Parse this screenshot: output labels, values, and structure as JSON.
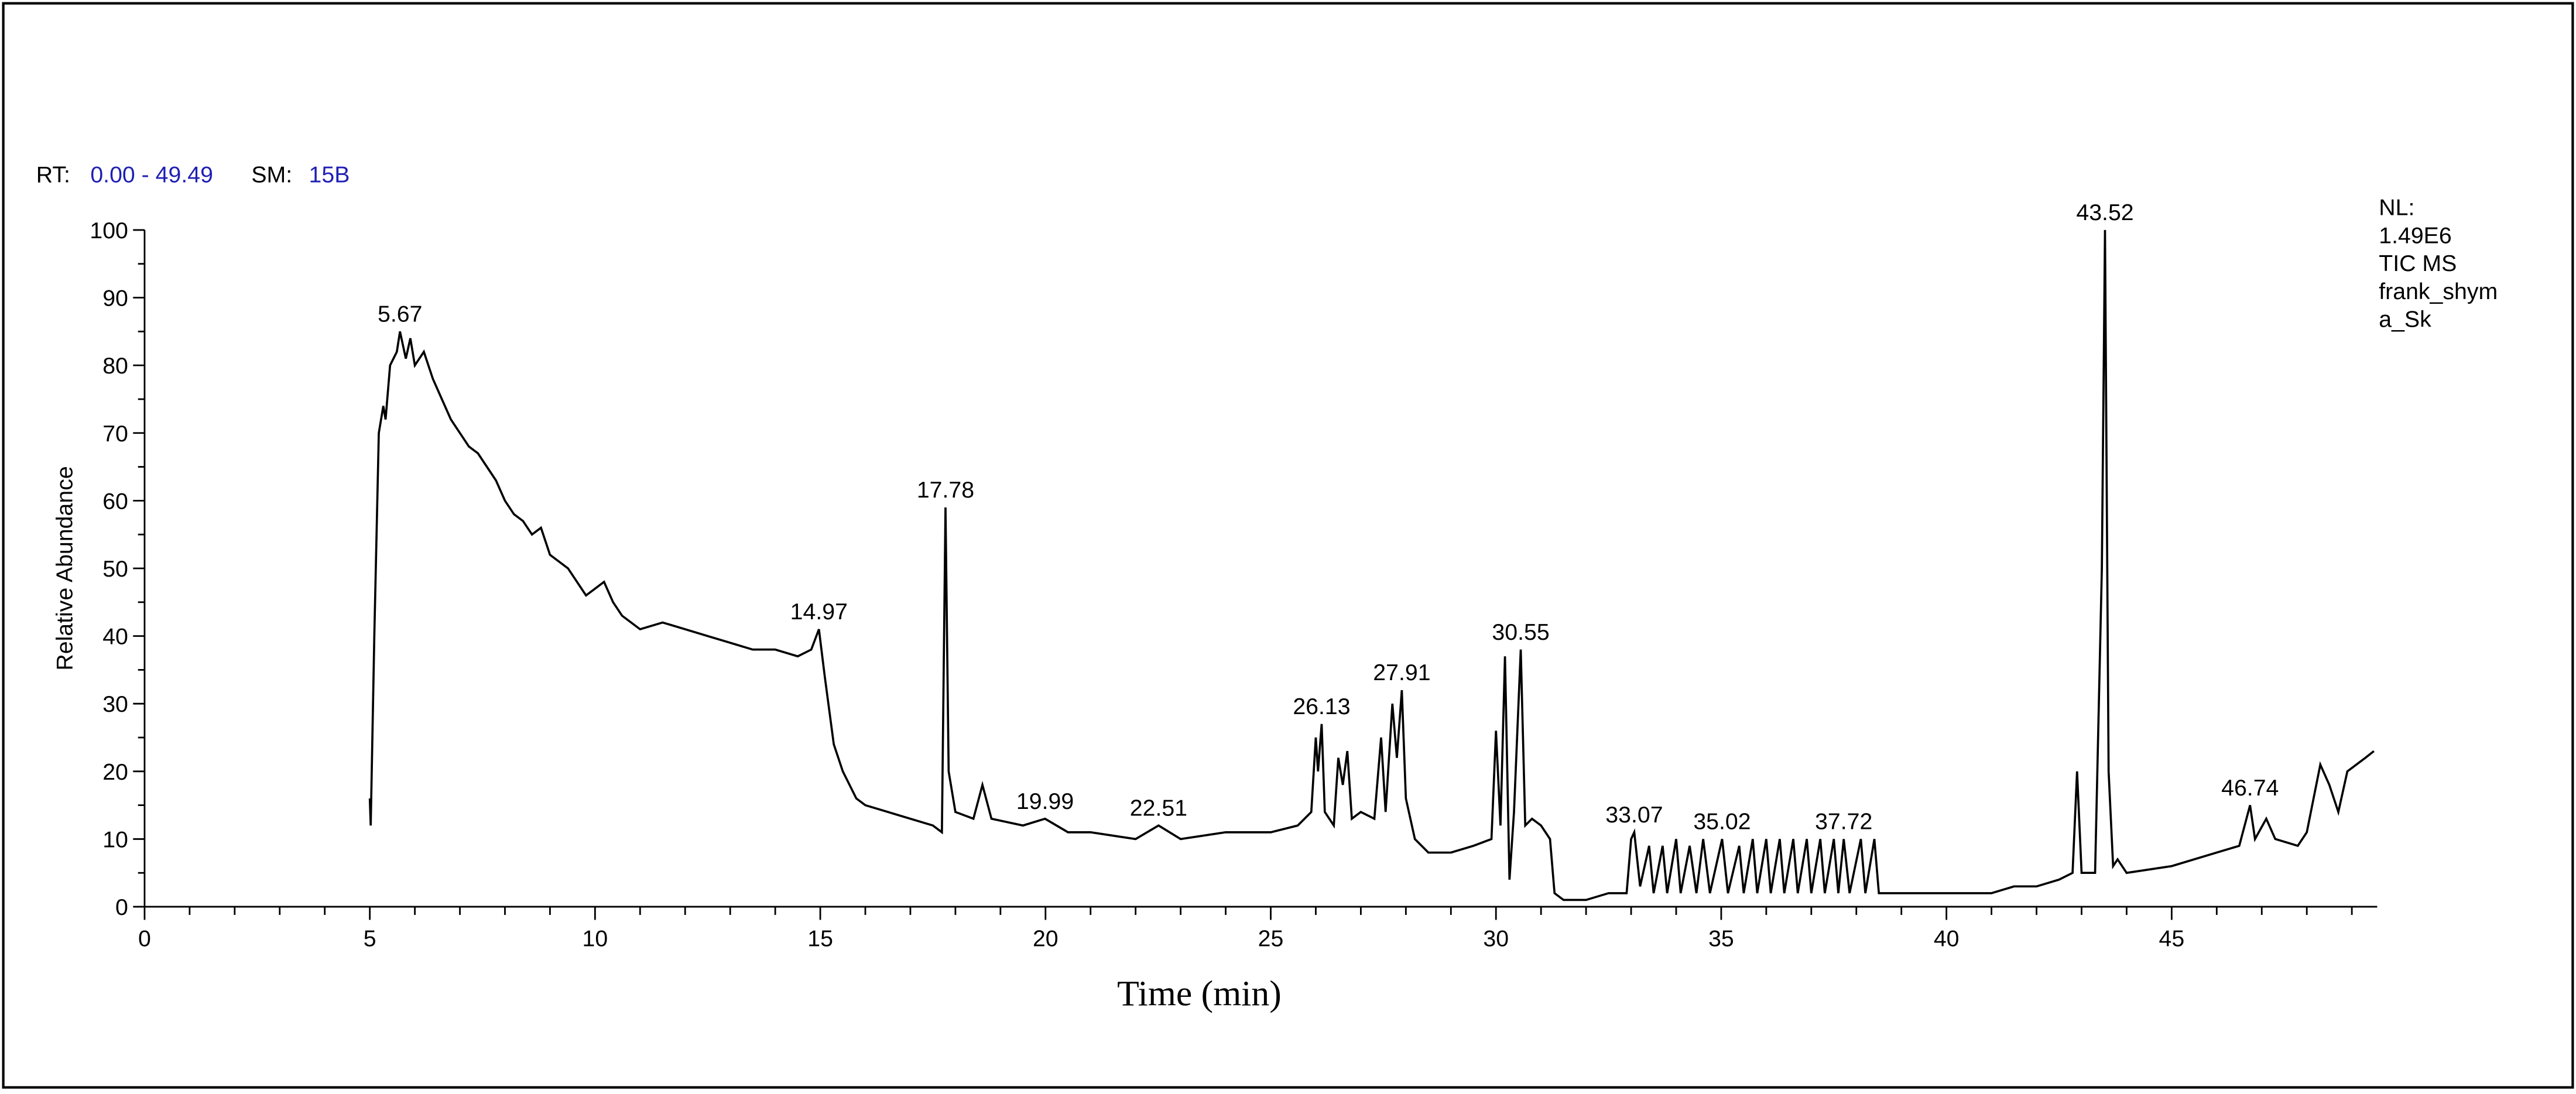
{
  "chart_data": {
    "type": "line",
    "rt_label": "RT:",
    "rt_range": "0.00 - 49.49",
    "sm_label": "SM:",
    "sm_value": "15B",
    "info": [
      "NL:",
      "1.49E6",
      "TIC  MS",
      "frank_shym",
      "a_Sk"
    ],
    "x_label": "Time (min)",
    "y_label": "Relative Abundance",
    "xlim": [
      0,
      49.49
    ],
    "ylim": [
      0,
      100
    ],
    "xticks": [
      0,
      5,
      10,
      15,
      20,
      25,
      30,
      35,
      40,
      45
    ],
    "yticks": [
      0,
      10,
      20,
      30,
      40,
      50,
      60,
      70,
      80,
      90,
      100
    ],
    "x_minor_ticks": [
      1,
      2,
      3,
      4,
      6,
      7,
      8,
      9,
      11,
      12,
      13,
      14,
      16,
      17,
      18,
      19,
      21,
      22,
      23,
      24,
      26,
      27,
      28,
      29,
      31,
      32,
      33,
      34,
      36,
      37,
      38,
      39,
      41,
      42,
      43,
      44,
      46,
      47,
      48,
      49
    ],
    "y_minor_ticks": [
      5,
      15,
      25,
      35,
      45,
      55,
      65,
      75,
      85,
      95
    ],
    "color": "#000000",
    "x": [
      5.0,
      5.02,
      5.1,
      5.2,
      5.3,
      5.35,
      5.45,
      5.6,
      5.67,
      5.8,
      5.9,
      6.0,
      6.2,
      6.4,
      6.6,
      6.8,
      7.0,
      7.2,
      7.4,
      7.6,
      7.8,
      8.0,
      8.2,
      8.4,
      8.6,
      8.8,
      9.0,
      9.2,
      9.4,
      9.6,
      9.8,
      10.0,
      10.2,
      10.4,
      10.6,
      10.8,
      11.0,
      11.5,
      12.0,
      12.5,
      13.0,
      13.5,
      14.0,
      14.5,
      14.8,
      14.97,
      15.1,
      15.3,
      15.5,
      15.8,
      16.0,
      16.5,
      17.0,
      17.5,
      17.7,
      17.78,
      17.85,
      18.0,
      18.4,
      18.6,
      18.8,
      19.5,
      19.99,
      20.5,
      21.0,
      22.0,
      22.51,
      23.0,
      24.0,
      25.0,
      25.6,
      25.9,
      26.0,
      26.05,
      26.13,
      26.2,
      26.4,
      26.5,
      26.6,
      26.7,
      26.8,
      27.0,
      27.3,
      27.45,
      27.55,
      27.7,
      27.8,
      27.91,
      28.0,
      28.2,
      28.5,
      29.0,
      29.5,
      29.9,
      30.0,
      30.1,
      30.2,
      30.3,
      30.4,
      30.55,
      30.65,
      30.8,
      31.0,
      31.2,
      31.3,
      31.5,
      32.0,
      32.5,
      32.9,
      33.0,
      33.07,
      33.2,
      33.4,
      33.5,
      33.7,
      33.8,
      34.0,
      34.1,
      34.3,
      34.45,
      34.6,
      34.75,
      35.02,
      35.15,
      35.4,
      35.5,
      35.7,
      35.8,
      36.0,
      36.1,
      36.3,
      36.4,
      36.6,
      36.7,
      36.9,
      37.0,
      37.2,
      37.3,
      37.5,
      37.6,
      37.72,
      37.85,
      38.1,
      38.2,
      38.4,
      38.5,
      39.0,
      40.0,
      41.0,
      41.5,
      42.0,
      42.5,
      42.8,
      42.9,
      43.0,
      43.3,
      43.45,
      43.52,
      43.6,
      43.7,
      43.8,
      44.0,
      45.0,
      46.0,
      46.5,
      46.7,
      46.74,
      46.85,
      47.1,
      47.3,
      47.8,
      48.0,
      48.3,
      48.5,
      48.7,
      48.9,
      49.1,
      49.3,
      49.49
    ],
    "values": [
      16,
      12,
      40,
      70,
      74,
      72,
      80,
      82,
      85,
      81,
      84,
      80,
      82,
      78,
      75,
      72,
      70,
      68,
      67,
      65,
      63,
      60,
      58,
      57,
      55,
      56,
      52,
      51,
      50,
      48,
      46,
      47,
      48,
      45,
      43,
      42,
      41,
      42,
      41,
      40,
      39,
      38,
      38,
      37,
      38,
      41,
      34,
      24,
      20,
      16,
      15,
      14,
      13,
      12,
      11,
      59,
      20,
      14,
      13,
      18,
      13,
      12,
      13,
      11,
      11,
      10,
      12,
      10,
      11,
      11,
      12,
      14,
      25,
      20,
      27,
      14,
      12,
      22,
      18,
      23,
      13,
      14,
      13,
      25,
      14,
      30,
      22,
      32,
      16,
      10,
      8,
      8,
      9,
      10,
      26,
      12,
      37,
      4,
      14,
      38,
      12,
      13,
      12,
      10,
      2,
      1,
      1,
      2,
      2,
      10,
      11,
      3,
      9,
      2,
      9,
      2,
      10,
      2,
      9,
      2,
      10,
      2,
      10,
      2,
      9,
      2,
      10,
      2,
      10,
      2,
      10,
      2,
      10,
      2,
      10,
      2,
      10,
      2,
      10,
      2,
      10,
      2,
      10,
      2,
      10,
      2,
      2,
      2,
      2,
      3,
      3,
      4,
      5,
      20,
      5,
      5,
      50,
      100,
      20,
      6,
      7,
      5,
      6,
      8,
      9,
      14,
      15,
      10,
      13,
      10,
      9,
      11,
      21,
      18,
      14,
      20,
      21,
      22,
      23
    ],
    "annotations": [
      {
        "x": 5.67,
        "y": 85
      },
      {
        "x": 14.97,
        "y": 41
      },
      {
        "x": 17.78,
        "y": 59
      },
      {
        "x": 19.99,
        "y": 13
      },
      {
        "x": 22.51,
        "y": 12
      },
      {
        "x": 26.13,
        "y": 27
      },
      {
        "x": 27.91,
        "y": 32
      },
      {
        "x": 30.55,
        "y": 38
      },
      {
        "x": 33.07,
        "y": 11
      },
      {
        "x": 35.02,
        "y": 10
      },
      {
        "x": 37.72,
        "y": 10
      },
      {
        "x": 43.52,
        "y": 100
      },
      {
        "x": 46.74,
        "y": 15
      }
    ]
  }
}
